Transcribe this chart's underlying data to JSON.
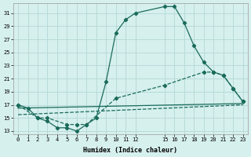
{
  "xlabel": "Humidex (Indice chaleur)",
  "background_color": "#d6f0ee",
  "grid_color": "#b8dbd8",
  "line_color": "#1a6b5a",
  "xlim": [
    -0.5,
    23.5
  ],
  "ylim": [
    12.5,
    32.5
  ],
  "xtick_positions": [
    0,
    1,
    2,
    3,
    4,
    5,
    6,
    7,
    8,
    9,
    10,
    11,
    12,
    15,
    16,
    17,
    18,
    19,
    20,
    21,
    22,
    23
  ],
  "xtick_labels": [
    "0",
    "1",
    "2",
    "3",
    "4",
    "5",
    "6",
    "7",
    "8",
    "9",
    "10",
    "11",
    "12",
    "15",
    "16",
    "17",
    "18",
    "19",
    "20",
    "21",
    "22",
    "23"
  ],
  "ytick_values": [
    13,
    15,
    17,
    19,
    21,
    23,
    25,
    27,
    29,
    31
  ],
  "line1_x": [
    0,
    1,
    2,
    3,
    4,
    5,
    6,
    7,
    8,
    9,
    10,
    11,
    12,
    15,
    16,
    17,
    18,
    19,
    20,
    21,
    22,
    23
  ],
  "line1_y": [
    17,
    16.5,
    15,
    14.5,
    13.5,
    13.5,
    13,
    14,
    15,
    20.5,
    28,
    30,
    31,
    32,
    32,
    29.5,
    26,
    23.5,
    22,
    21.5,
    19.5,
    17.5
  ],
  "line2_x": [
    0,
    2,
    3,
    5,
    6,
    7,
    10,
    15,
    19,
    20,
    21,
    22,
    23
  ],
  "line2_y": [
    17,
    15,
    15,
    14,
    14,
    14,
    18,
    20,
    22,
    22,
    21.5,
    19.5,
    17.5
  ],
  "line3_x": [
    0,
    23
  ],
  "line3_y": [
    16.5,
    17.2
  ],
  "line4_x": [
    0,
    23
  ],
  "line4_y": [
    15.5,
    17.0
  ]
}
